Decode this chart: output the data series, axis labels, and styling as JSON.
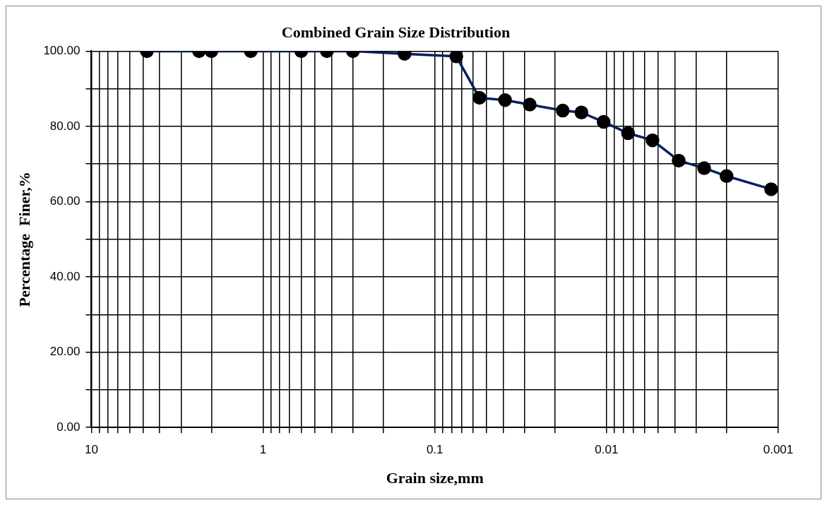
{
  "chart_data": {
    "type": "line",
    "title": "Combined Grain Size Distribution",
    "xlabel": "Grain size,mm",
    "ylabel": "Percentage  Finer,%",
    "log": "x",
    "grid": true,
    "marker": "circle",
    "line_style": "solid",
    "xlim": [
      10,
      0.001
    ],
    "xticks": [
      10,
      {
        "value": 9,
        "label": null
      },
      {
        "value": 8,
        "label": null
      },
      {
        "value": 7,
        "label": null
      },
      {
        "value": 6,
        "label": null
      },
      {
        "value": 5,
        "label": null
      },
      {
        "value": 4,
        "label": null
      },
      {
        "value": 3,
        "label": null
      },
      {
        "value": 2,
        "label": null
      },
      1,
      {
        "value": 0.9,
        "label": null
      },
      {
        "value": 0.8,
        "label": null
      },
      {
        "value": 0.7,
        "label": null
      },
      {
        "value": 0.6,
        "label": null
      },
      {
        "value": 0.5,
        "label": null
      },
      {
        "value": 0.4,
        "label": null
      },
      {
        "value": 0.3,
        "label": null
      },
      {
        "value": 0.2,
        "label": null
      },
      0.1,
      {
        "value": 0.09,
        "label": null
      },
      {
        "value": 0.08,
        "label": null
      },
      {
        "value": 0.07,
        "label": null
      },
      {
        "value": 0.06,
        "label": null
      },
      {
        "value": 0.05,
        "label": null
      },
      {
        "value": 0.04,
        "label": null
      },
      {
        "value": 0.03,
        "label": null
      },
      {
        "value": 0.02,
        "label": null
      },
      0.01,
      {
        "value": 0.009,
        "label": null
      },
      {
        "value": 0.008,
        "label": null
      },
      {
        "value": 0.007,
        "label": null
      },
      {
        "value": 0.006,
        "label": null
      },
      {
        "value": 0.005,
        "label": null
      },
      {
        "value": 0.004,
        "label": null
      },
      {
        "value": 0.003,
        "label": null
      },
      {
        "value": 0.002,
        "label": null
      },
      0.001
    ],
    "ylim": [
      0,
      100
    ],
    "yticks": [
      {
        "value": 0,
        "label": "0.00"
      },
      {
        "value": 10,
        "label": null
      },
      {
        "value": 20,
        "label": "20.00"
      },
      {
        "value": 30,
        "label": null
      },
      {
        "value": 40,
        "label": "40.00"
      },
      {
        "value": 50,
        "label": null
      },
      {
        "value": 60,
        "label": "60.00"
      },
      {
        "value": 70,
        "label": null
      },
      {
        "value": 80,
        "label": "80.00"
      },
      {
        "value": 90,
        "label": null
      },
      {
        "value": 100,
        "label": "100.00"
      }
    ],
    "x": [
      4.75,
      2.36,
      2.0,
      1.18,
      0.6,
      0.425,
      0.3,
      0.15,
      0.075,
      0.055,
      0.039,
      0.028,
      0.018,
      0.014,
      0.0104,
      0.0075,
      0.0054,
      0.0038,
      0.0027,
      0.002,
      0.0011
    ],
    "series": [
      {
        "color": "#002060",
        "values": [
          100,
          100,
          100,
          100,
          100,
          100,
          100,
          99.3,
          98.6,
          87.6,
          87.0,
          85.8,
          84.2,
          83.7,
          81.2,
          78.2,
          76.3,
          70.9,
          68.9,
          66.8,
          63.3
        ]
      }
    ]
  }
}
